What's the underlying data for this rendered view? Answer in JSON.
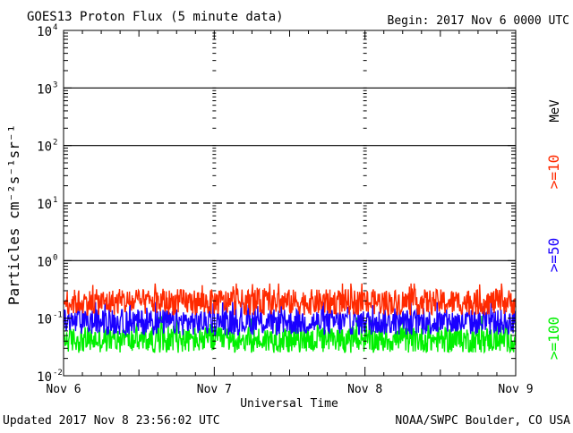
{
  "chart_data": {
    "type": "line",
    "title": "GOES13 Proton Flux (5 minute data)",
    "begin_label": "Begin: 2017 Nov 6 0000 UTC",
    "xlabel": "Universal Time",
    "ylabel": "Particles cm⁻²s⁻¹sr⁻¹",
    "units_label": "MeV",
    "x_range_days": [
      0,
      3
    ],
    "x_tick_labels": [
      "Nov 6",
      "Nov 7",
      "Nov 8",
      "Nov 9"
    ],
    "y_scale": "log",
    "ylim": [
      0.01,
      10000
    ],
    "y_tick_labels": [
      {
        "base": "10",
        "exp": "-2"
      },
      {
        "base": "10",
        "exp": "-1"
      },
      {
        "base": "10",
        "exp": "0"
      },
      {
        "base": "10",
        "exp": "1"
      },
      {
        "base": "10",
        "exp": "2"
      },
      {
        "base": "10",
        "exp": "3"
      },
      {
        "base": "10",
        "exp": "4"
      }
    ],
    "thresholds": [
      {
        "value": 10,
        "style": "dashed"
      },
      {
        "value": 1,
        "style": "solid"
      },
      {
        "value": 100,
        "style": "solid"
      },
      {
        "value": 1000,
        "style": "solid"
      }
    ],
    "series": [
      {
        "name": ">=10",
        "color": "#ff2a00",
        "typical": 0.19,
        "min": 0.11,
        "max": 0.4
      },
      {
        "name": ">=50",
        "color": "#1a00ff",
        "typical": 0.085,
        "min": 0.045,
        "max": 0.19
      },
      {
        "name": ">=100",
        "color": "#00f000",
        "typical": 0.042,
        "min": 0.025,
        "max": 0.11
      }
    ]
  },
  "footer": {
    "updated": "Updated 2017 Nov  8 23:56:02 UTC",
    "credit": "NOAA/SWPC Boulder, CO USA"
  }
}
